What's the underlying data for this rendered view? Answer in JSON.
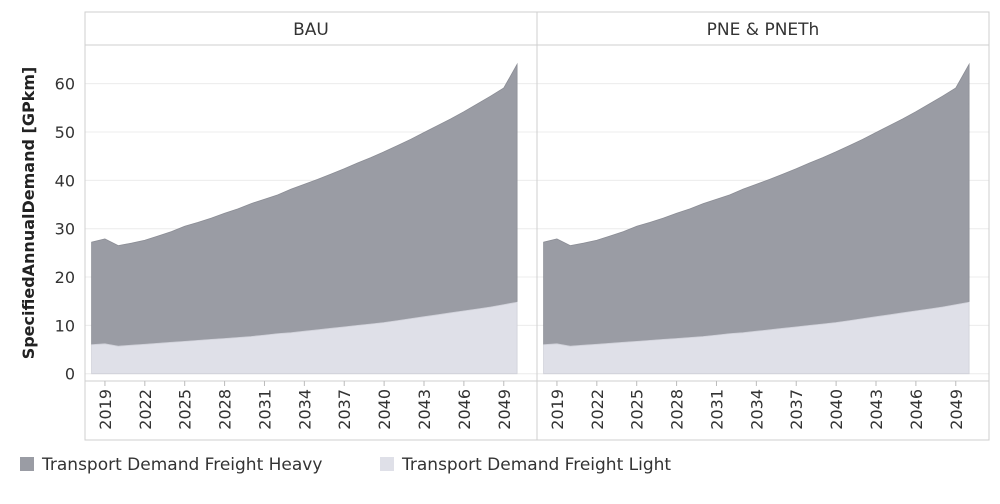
{
  "chart_data": {
    "type": "area",
    "stacked": true,
    "ylabel": "SpecifiedAnnualDemand [GPkm]",
    "xlabel": "",
    "ylim": [
      -1.5,
      68
    ],
    "yticks": [
      0,
      10,
      20,
      30,
      40,
      50,
      60
    ],
    "xticks": [
      2019,
      2022,
      2025,
      2028,
      2031,
      2034,
      2037,
      2040,
      2043,
      2046,
      2049
    ],
    "xlim": [
      2017.5,
      2051.5
    ],
    "grid": true,
    "legend_position": "bottom-left",
    "x": [
      2018,
      2019,
      2020,
      2021,
      2022,
      2023,
      2024,
      2025,
      2026,
      2027,
      2028,
      2029,
      2030,
      2031,
      2032,
      2033,
      2034,
      2035,
      2036,
      2037,
      2038,
      2039,
      2040,
      2041,
      2042,
      2043,
      2044,
      2045,
      2046,
      2047,
      2048,
      2049,
      2050
    ],
    "colors": {
      "heavy": "#9a9ca4",
      "light": "#dfe0e8"
    },
    "panels": [
      {
        "title": "BAU",
        "series": [
          {
            "name": "Transport Demand Freight Light",
            "values": [
              6.0,
              6.2,
              5.7,
              5.9,
              6.1,
              6.3,
              6.5,
              6.7,
              6.9,
              7.1,
              7.3,
              7.5,
              7.7,
              8.0,
              8.3,
              8.5,
              8.8,
              9.1,
              9.4,
              9.7,
              10.0,
              10.3,
              10.6,
              11.0,
              11.4,
              11.8,
              12.2,
              12.6,
              13.0,
              13.4,
              13.8,
              14.3,
              14.8
            ]
          },
          {
            "name": "Transport Demand Freight Heavy",
            "values": [
              21.2,
              21.7,
              20.8,
              21.1,
              21.5,
              22.2,
              22.9,
              23.8,
              24.4,
              25.1,
              25.9,
              26.6,
              27.5,
              28.1,
              28.7,
              29.7,
              30.4,
              31.1,
              31.9,
              32.7,
              33.6,
              34.4,
              35.3,
              36.2,
              37.1,
              38.1,
              39.1,
              40.1,
              41.2,
              42.4,
              43.6,
              44.8,
              49.2
            ]
          }
        ]
      },
      {
        "title": "PNE & PNETh",
        "series": [
          {
            "name": "Transport Demand Freight Light",
            "values": [
              6.0,
              6.2,
              5.7,
              5.9,
              6.1,
              6.3,
              6.5,
              6.7,
              6.9,
              7.1,
              7.3,
              7.5,
              7.7,
              8.0,
              8.3,
              8.5,
              8.8,
              9.1,
              9.4,
              9.7,
              10.0,
              10.3,
              10.6,
              11.0,
              11.4,
              11.8,
              12.2,
              12.6,
              13.0,
              13.4,
              13.8,
              14.3,
              14.8
            ]
          },
          {
            "name": "Transport Demand Freight Heavy",
            "values": [
              21.2,
              21.7,
              20.8,
              21.1,
              21.5,
              22.2,
              22.9,
              23.8,
              24.4,
              25.1,
              25.9,
              26.6,
              27.5,
              28.1,
              28.7,
              29.7,
              30.4,
              31.1,
              31.9,
              32.7,
              33.6,
              34.4,
              35.3,
              36.2,
              37.1,
              38.1,
              39.1,
              40.1,
              41.2,
              42.4,
              43.6,
              44.8,
              49.2
            ]
          }
        ]
      }
    ],
    "legend": [
      {
        "name": "Transport Demand Freight Heavy",
        "color": "#9a9ca4"
      },
      {
        "name": "Transport Demand Freight Light",
        "color": "#dfe0e8"
      }
    ]
  }
}
